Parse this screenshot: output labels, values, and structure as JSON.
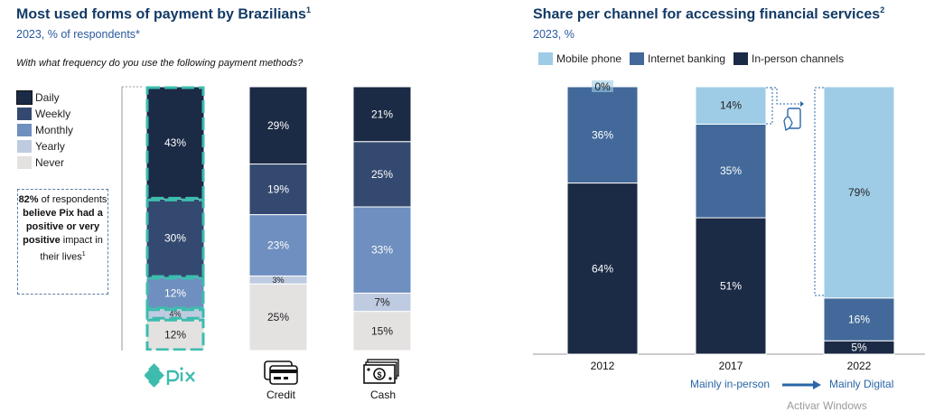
{
  "left": {
    "title": "Most used forms of payment by Brazilians",
    "title_sup": "1",
    "subtitle": "2023, % of respondents*",
    "question": "With what frequency do you use the following payment methods?",
    "callout": {
      "pct": "82%",
      "t1": " of respondents ",
      "b1": "believe Pix had a positive or very positive",
      "t2": " impact in their lives",
      "sup": "1"
    },
    "icons": {
      "pix_logo": "pix-logo",
      "credit": "credit-card-icon",
      "cash": "cash-icon"
    }
  },
  "right": {
    "title": "Share per channel for accessing financial services",
    "title_sup": "2",
    "subtitle": "2023, %",
    "flow_from": "Mainly in-person",
    "flow_to": "Mainly Digital",
    "phone_icon": "mobile-phone-icon"
  },
  "watermark": "Activar Windows",
  "chart_data": [
    {
      "type": "bar",
      "stacked": true,
      "title": "Most used forms of payment by Brazilians",
      "categories": [
        "Pix",
        "Credit",
        "Cash"
      ],
      "category_labels": [
        "",
        "Credit",
        "Cash"
      ],
      "series": [
        {
          "name": "Daily",
          "color": "#1b2a45",
          "values": [
            43,
            29,
            21
          ]
        },
        {
          "name": "Weekly",
          "color": "#34496f",
          "values": [
            30,
            19,
            25
          ]
        },
        {
          "name": "Monthly",
          "color": "#6e8fbf",
          "values": [
            12,
            23,
            33
          ]
        },
        {
          "name": "Yearly",
          "color": "#bfcbe0",
          "values": [
            4,
            3,
            7
          ]
        },
        {
          "name": "Never",
          "color": "#e4e1e1",
          "values": [
            12,
            25,
            15
          ]
        }
      ],
      "highlight_category": "Pix",
      "highlight_color": "#3dbcae",
      "legend": "left",
      "ylim": [
        0,
        100
      ]
    },
    {
      "type": "bar",
      "stacked": true,
      "title": "Share per channel for accessing financial services",
      "categories": [
        "2012",
        "2017",
        "2022"
      ],
      "series": [
        {
          "name": "In-person channels",
          "color": "#1b2a45",
          "values": [
            64,
            51,
            5
          ]
        },
        {
          "name": "Internet banking",
          "color": "#42699a",
          "values": [
            36,
            35,
            16
          ]
        },
        {
          "name": "Mobile phone",
          "color": "#9ecce6",
          "values": [
            0,
            14,
            79
          ]
        }
      ],
      "legend_order": [
        "Mobile phone",
        "Internet banking",
        "In-person channels"
      ],
      "legend": "top",
      "ylim": [
        0,
        100
      ]
    }
  ]
}
